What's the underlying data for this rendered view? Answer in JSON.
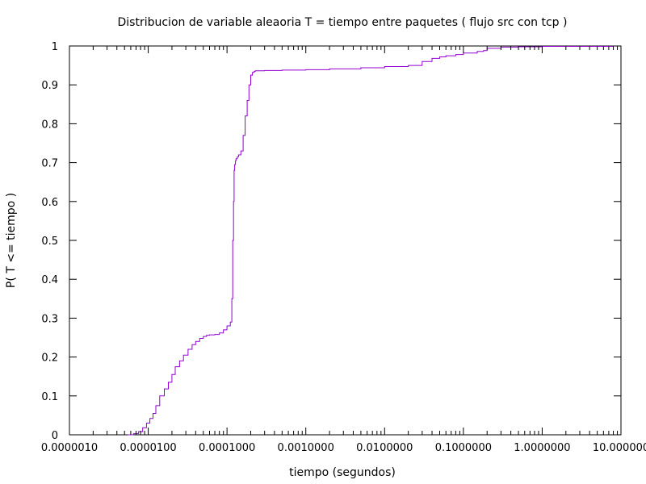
{
  "chart_data": {
    "type": "line",
    "title": "Distribucion de variable aleaoria T = tiempo entre paquetes  ( flujo src con tcp )",
    "xlabel": "tiempo (segundos)",
    "ylabel": "P( T <= tiempo )",
    "x_scale": "log",
    "xlim": [
      1e-06,
      10
    ],
    "ylim": [
      0,
      1
    ],
    "grid": false,
    "legend": "none",
    "line_color": "#9400d3",
    "x_ticks": [
      {
        "value": 1e-06,
        "label": "0.0000010"
      },
      {
        "value": 1e-05,
        "label": "0.0000100"
      },
      {
        "value": 0.0001,
        "label": "0.0001000"
      },
      {
        "value": 0.001,
        "label": "0.0010000"
      },
      {
        "value": 0.01,
        "label": "0.0100000"
      },
      {
        "value": 0.1,
        "label": "0.1000000"
      },
      {
        "value": 1,
        "label": "1.0000000"
      },
      {
        "value": 10,
        "label": "10.000000"
      }
    ],
    "y_ticks": [
      {
        "value": 0,
        "label": "0"
      },
      {
        "value": 0.1,
        "label": "0.1"
      },
      {
        "value": 0.2,
        "label": "0.2"
      },
      {
        "value": 0.3,
        "label": "0.3"
      },
      {
        "value": 0.4,
        "label": "0.4"
      },
      {
        "value": 0.5,
        "label": "0.5"
      },
      {
        "value": 0.6,
        "label": "0.6"
      },
      {
        "value": 0.7,
        "label": "0.7"
      },
      {
        "value": 0.8,
        "label": "0.8"
      },
      {
        "value": 0.9,
        "label": "0.9"
      },
      {
        "value": 1,
        "label": "1"
      }
    ],
    "series": [
      {
        "x": [
          5.5e-06,
          6.5e-06,
          7.5e-06,
          8.5e-06,
          9.5e-06,
          1.05e-05,
          1.15e-05,
          1.25e-05,
          1.4e-05,
          1.6e-05,
          1.8e-05,
          2e-05,
          2.2e-05,
          2.5e-05,
          2.8e-05,
          3.2e-05,
          3.6e-05,
          4e-05,
          4.5e-05,
          5e-05,
          5.5e-05,
          6e-05,
          7e-05,
          8e-05,
          9e-05,
          0.0001,
          0.00011,
          0.000115,
          0.000118,
          0.000121,
          0.000123,
          0.000125,
          0.000128,
          0.00013,
          0.000135,
          0.00014,
          0.00015,
          0.00016,
          0.00017,
          0.00018,
          0.00019,
          0.0002,
          0.00021,
          0.00022,
          0.000225,
          0.00023,
          0.0003,
          0.0005,
          0.001,
          0.002,
          0.005,
          0.01,
          0.02,
          0.03,
          0.04,
          0.05,
          0.06,
          0.08,
          0.1,
          0.15,
          0.18,
          0.2,
          0.3,
          0.5,
          1,
          2,
          5,
          8
        ],
        "y": [
          0.0,
          0.003,
          0.008,
          0.018,
          0.03,
          0.042,
          0.055,
          0.075,
          0.1,
          0.118,
          0.135,
          0.155,
          0.175,
          0.19,
          0.205,
          0.22,
          0.232,
          0.24,
          0.248,
          0.253,
          0.256,
          0.257,
          0.258,
          0.262,
          0.27,
          0.28,
          0.29,
          0.35,
          0.5,
          0.6,
          0.68,
          0.695,
          0.705,
          0.71,
          0.715,
          0.72,
          0.73,
          0.77,
          0.82,
          0.86,
          0.9,
          0.925,
          0.932,
          0.934,
          0.935,
          0.936,
          0.937,
          0.938,
          0.939,
          0.941,
          0.944,
          0.947,
          0.95,
          0.96,
          0.968,
          0.972,
          0.975,
          0.978,
          0.982,
          0.986,
          0.988,
          0.994,
          0.997,
          0.998,
          0.999,
          0.999,
          0.999,
          0.999
        ]
      }
    ]
  }
}
